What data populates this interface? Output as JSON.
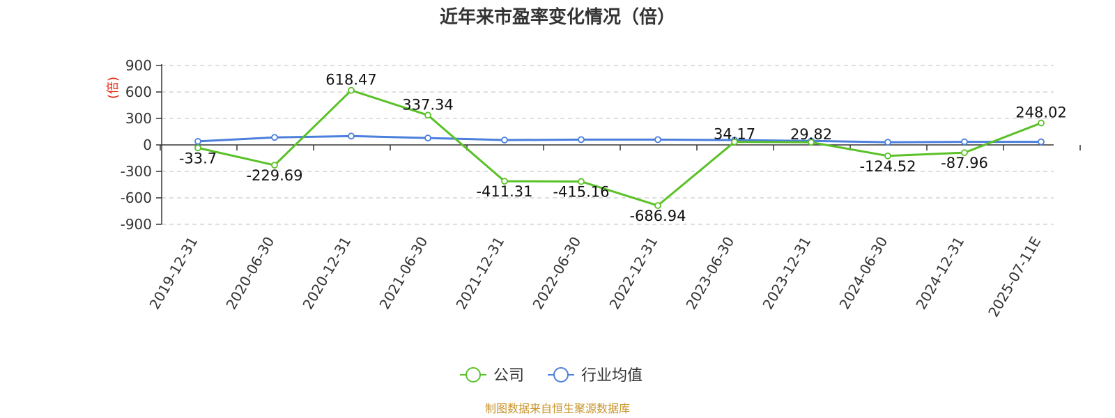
{
  "chart_data": {
    "type": "line",
    "title": "近年来市盈率变化情况（倍）",
    "ylabel": "(倍)",
    "ylim": [
      -900,
      900
    ],
    "yticks": [
      900,
      600,
      300,
      0,
      -300,
      -600,
      -900
    ],
    "categories": [
      "2019-12-31",
      "2020-06-30",
      "2020-12-31",
      "2021-06-30",
      "2021-12-31",
      "2022-06-30",
      "2022-12-31",
      "2023-06-30",
      "2023-12-31",
      "2024-06-30",
      "2024-12-31",
      "2025-07-11E"
    ],
    "series": [
      {
        "name": "公司",
        "color": "#5ac127",
        "values": [
          -33.7,
          -229.69,
          618.47,
          337.34,
          -411.31,
          -415.16,
          -686.94,
          34.17,
          29.82,
          -124.52,
          -87.96,
          248.02
        ],
        "labels": [
          "-33.7",
          "-229.69",
          "618.47",
          "337.34",
          "-411.31",
          "-415.16",
          "-686.94",
          "34.17",
          "29.82",
          "-124.52",
          "-87.96",
          "248.02"
        ]
      },
      {
        "name": "行业均值",
        "color": "#4a7fdc",
        "values": [
          40,
          85,
          100,
          78,
          55,
          60,
          60,
          55,
          45,
          30,
          35,
          35
        ]
      }
    ],
    "grid": true,
    "legend": "bottom-center"
  },
  "source": "制图数据来自恒生聚源数据库"
}
